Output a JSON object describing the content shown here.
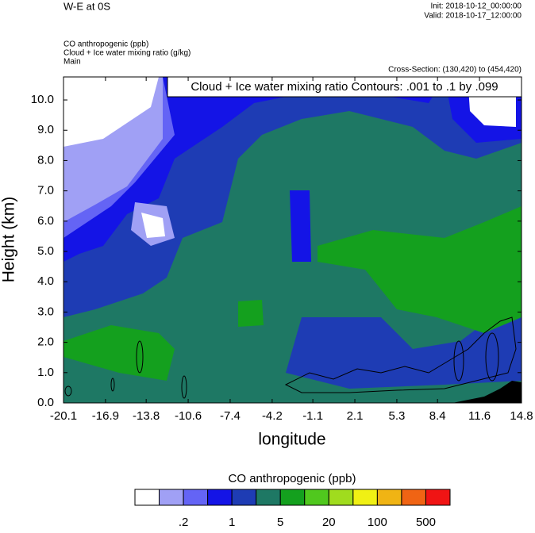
{
  "header": {
    "left": "W-E at 0S",
    "init": "Init: 2018-10-12_00:00:00",
    "valid": "Valid: 2018-10-17_12:00:00",
    "fields": [
      "CO anthropogenic   (ppb)",
      "Cloud + Ice water mixing ratio   (g/kg)",
      "Main"
    ],
    "cross_section": "Cross-Section: (130,420) to (454,420)"
  },
  "chart_data": {
    "type": "contour",
    "annotation": "Cloud + Ice water mixing ratio Contours: .001 to .1 by .099",
    "x_label": "longitude",
    "y_label": "Height (km)",
    "xlim": [
      -20.1,
      14.8
    ],
    "xticks": [
      -20.1,
      -16.9,
      -13.8,
      -10.6,
      -7.4,
      -4.2,
      -1.1,
      2.1,
      5.3,
      8.4,
      11.6,
      14.8
    ],
    "ylim": [
      0,
      10.76
    ],
    "yticks": [
      {
        "value": 0,
        "label": "0.0"
      },
      {
        "value": 1,
        "label": "1.0"
      },
      {
        "value": 2,
        "label": "2.0"
      },
      {
        "value": 3,
        "label": "3.0"
      },
      {
        "value": 4,
        "label": "4.0"
      },
      {
        "value": 5,
        "label": "5.0"
      },
      {
        "value": 6,
        "label": "6.0"
      },
      {
        "value": 7,
        "label": "7.0"
      },
      {
        "value": 8,
        "label": "8.0"
      },
      {
        "value": 9,
        "label": "9.0"
      },
      {
        "value": 10,
        "label": "10.0"
      }
    ],
    "colorbar": {
      "title": "CO anthropogenic  (ppb)",
      "colors": [
        "#ffffff",
        "#a0a0f5",
        "#6464f5",
        "#1414e6",
        "#1e3cb4",
        "#1e7864",
        "#14a01e",
        "#50c81e",
        "#a0dc1e",
        "#f0f014",
        "#f0b414",
        "#f06414",
        "#f01414"
      ],
      "labels": [
        ".2",
        "1",
        "5",
        "20",
        "100",
        "500"
      ]
    }
  }
}
